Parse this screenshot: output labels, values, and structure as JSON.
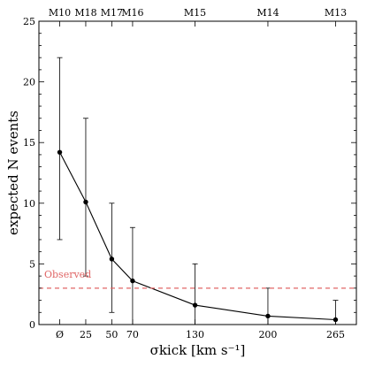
{
  "chart_data": {
    "type": "line",
    "xlabel": "σkick [km s⁻¹]",
    "ylabel": "expected N events",
    "x_categories": [
      "Ø",
      "25",
      "50",
      "70",
      "130",
      "200",
      "265"
    ],
    "x_values": [
      0,
      25,
      50,
      70,
      130,
      200,
      265
    ],
    "model_labels": [
      "M10",
      "M18",
      "M17",
      "M16",
      "M15",
      "M14",
      "M13"
    ],
    "series": [
      {
        "values": [
          14.2,
          10.1,
          5.4,
          3.6,
          1.6,
          0.7,
          0.4
        ],
        "err_low": [
          7.0,
          4.0,
          1.0,
          0.0,
          0.0,
          0.0,
          0.0
        ],
        "err_high": [
          22.0,
          17.0,
          10.0,
          8.0,
          5.0,
          3.0,
          2.0
        ],
        "color": "#000000"
      }
    ],
    "observed": {
      "label": "Observed",
      "value": 3,
      "color": "#e06666"
    },
    "ylim": [
      0,
      25
    ],
    "yticks": [
      0,
      5,
      10,
      15,
      20,
      25
    ],
    "legend": "none",
    "grid": false
  }
}
